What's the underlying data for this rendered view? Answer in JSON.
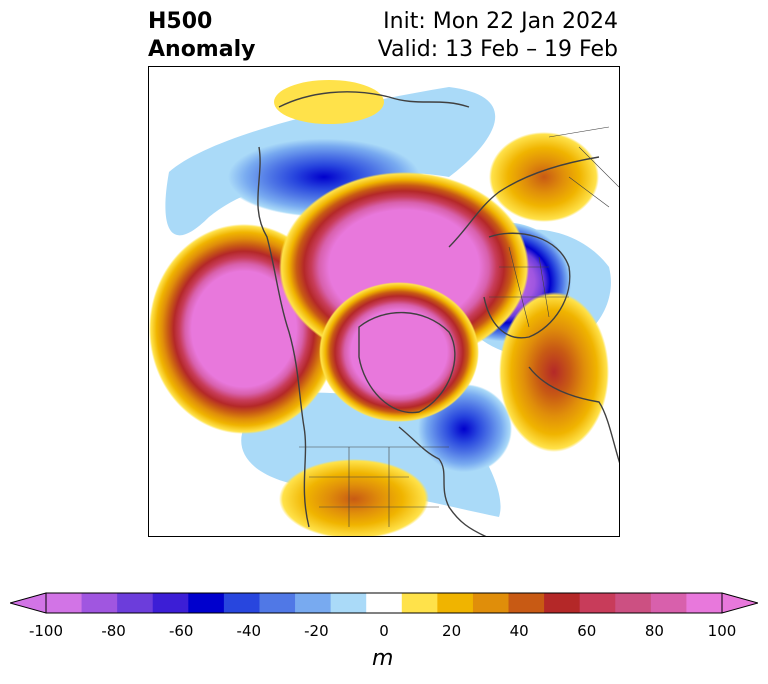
{
  "title": {
    "line1": "H500",
    "line2": "Anomaly",
    "init": "Init: Mon 22 Jan 2024",
    "valid": "Valid: 13 Feb – 19 Feb"
  },
  "colorbar": {
    "unit": "m",
    "tick_labels": [
      "-100",
      "-80",
      "-60",
      "-40",
      "-20",
      "0",
      "20",
      "40",
      "60",
      "80",
      "100"
    ],
    "levels": [
      -100,
      -90,
      -80,
      -70,
      -60,
      -50,
      -40,
      -30,
      -20,
      -10,
      10,
      20,
      30,
      40,
      50,
      60,
      70,
      80,
      90,
      100
    ],
    "colors": [
      "#d274e6",
      "#a056e0",
      "#6c3ddb",
      "#3c1ed6",
      "#0000cd",
      "#2846de",
      "#5078e6",
      "#78aaf0",
      "#aadaf8",
      "#ffffff",
      "#ffe24a",
      "#f0b400",
      "#e08e0a",
      "#c85a14",
      "#b42828",
      "#c83c5a",
      "#cc5082",
      "#d860ac",
      "#e878dc"
    ],
    "under_color": "#d274e6",
    "over_color": "#e878dc"
  },
  "map": {
    "projection": "north-polar stereographic",
    "domain": "North America, North Atlantic, Arctic"
  }
}
